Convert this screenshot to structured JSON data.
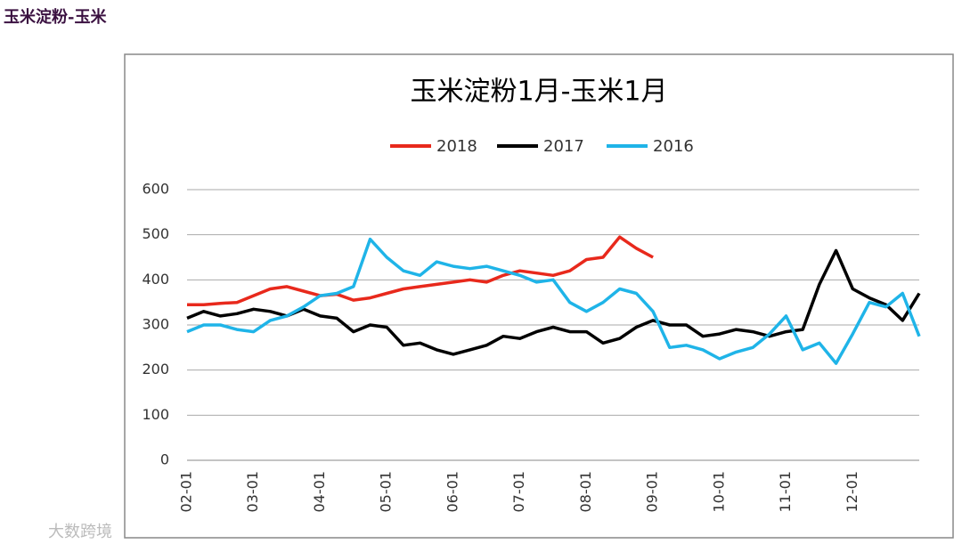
{
  "header": "玉米淀粉-玉米",
  "watermark": "大数跨境",
  "chart_data": {
    "type": "line",
    "title": "玉米淀粉1月-玉米1月",
    "categories": [
      "02-01",
      null,
      null,
      null,
      "03-01",
      null,
      null,
      null,
      "04-01",
      null,
      null,
      null,
      "05-01",
      null,
      null,
      null,
      "06-01",
      null,
      null,
      null,
      "07-01",
      null,
      null,
      null,
      "08-01",
      null,
      null,
      null,
      "09-01",
      null,
      null,
      null,
      "10-01",
      null,
      null,
      null,
      "11-01",
      null,
      null,
      null,
      "12-01",
      null,
      null,
      null,
      null
    ],
    "series": [
      {
        "name": "2018",
        "color": "#e8291c",
        "values": [
          345,
          345,
          348,
          350,
          365,
          380,
          385,
          375,
          365,
          368,
          355,
          360,
          370,
          380,
          385,
          390,
          395,
          400,
          395,
          410,
          420,
          415,
          410,
          420,
          445,
          450,
          495,
          470,
          450,
          null,
          null,
          null,
          null,
          null,
          null,
          null,
          null,
          null,
          null,
          null,
          null,
          null,
          null,
          null,
          null
        ]
      },
      {
        "name": "2017",
        "color": "#000000",
        "values": [
          315,
          330,
          320,
          325,
          335,
          330,
          320,
          335,
          320,
          315,
          285,
          300,
          295,
          255,
          260,
          245,
          235,
          245,
          255,
          275,
          270,
          285,
          295,
          285,
          285,
          260,
          270,
          295,
          310,
          300,
          300,
          275,
          280,
          290,
          285,
          275,
          285,
          290,
          390,
          465,
          380,
          360,
          345,
          310,
          370
        ]
      },
      {
        "name": "2016",
        "color": "#1fb4e8",
        "values": [
          285,
          300,
          300,
          290,
          285,
          310,
          320,
          340,
          365,
          370,
          385,
          490,
          450,
          420,
          410,
          440,
          430,
          425,
          430,
          420,
          410,
          395,
          400,
          350,
          330,
          350,
          380,
          370,
          330,
          250,
          255,
          245,
          225,
          240,
          250,
          280,
          320,
          245,
          260,
          215,
          280,
          350,
          340,
          370,
          275
        ]
      }
    ],
    "ylim": [
      0,
      600
    ],
    "yticks": [
      0,
      100,
      200,
      300,
      400,
      500,
      600
    ],
    "grid": true
  }
}
